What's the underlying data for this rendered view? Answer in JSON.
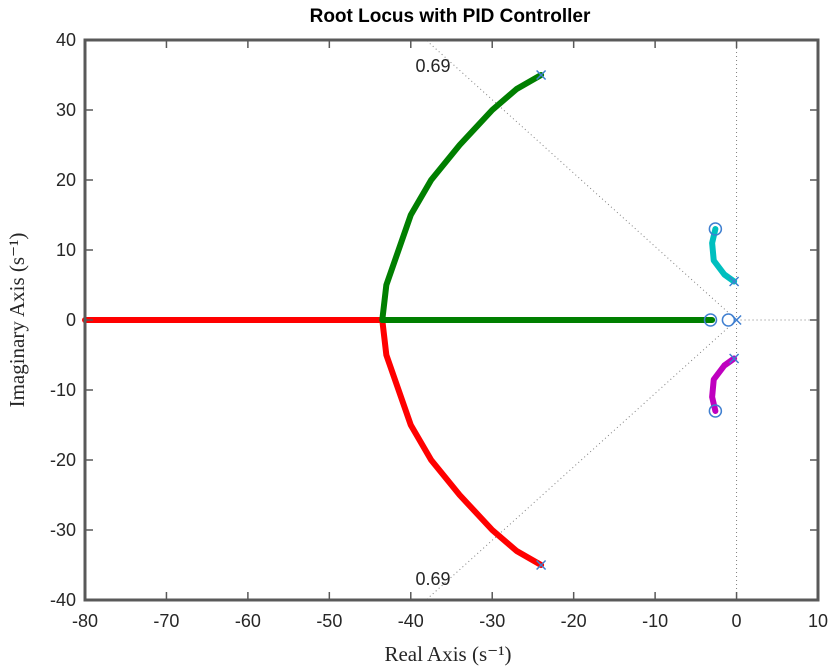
{
  "chart_data": {
    "type": "line",
    "title": "Root Locus with PID Controller",
    "xlabel": "Real Axis (s⁻¹)",
    "ylabel": "Imaginary Axis (s⁻¹)",
    "xlim": [
      -80,
      10
    ],
    "ylim": [
      -40,
      40
    ],
    "xticks": [
      -80,
      -70,
      -60,
      -50,
      -40,
      -30,
      -20,
      -10,
      0,
      10
    ],
    "yticks": [
      -40,
      -30,
      -20,
      -10,
      0,
      10,
      20,
      30,
      40
    ],
    "grid": false,
    "damping_labels": [
      "0.69",
      "0.69"
    ],
    "series": [
      {
        "color": "#ff0000",
        "x": [
          -80,
          -43.5
        ],
        "y": [
          0,
          0
        ]
      },
      {
        "color": "#ff0000",
        "x": [
          -43.5,
          -43.0,
          -41.5,
          -40.0,
          -37.5,
          -34.0,
          -30.0,
          -27.0,
          -24.0
        ],
        "y": [
          0,
          -5,
          -10,
          -15,
          -20,
          -25,
          -30,
          -33,
          -35
        ]
      },
      {
        "color": "#007f00",
        "x": [
          -43.5,
          -3.0
        ],
        "y": [
          0,
          0
        ]
      },
      {
        "color": "#007f00",
        "x": [
          -43.5,
          -43.0,
          -41.5,
          -40.0,
          -37.5,
          -34.0,
          -30.0,
          -27.0,
          -24.0
        ],
        "y": [
          0,
          5,
          10,
          15,
          20,
          25,
          30,
          33,
          35
        ]
      },
      {
        "color": "#00bfbf",
        "x": [
          -0.3,
          -1.5,
          -2.8,
          -3.0,
          -2.6
        ],
        "y": [
          5.5,
          6.5,
          8.5,
          11,
          13
        ]
      },
      {
        "color": "#bf00bf",
        "x": [
          -0.3,
          -1.5,
          -2.8,
          -3.0,
          -2.6
        ],
        "y": [
          -5.5,
          -6.5,
          -8.5,
          -11,
          -13
        ]
      }
    ],
    "poles": [
      {
        "x": -24,
        "y": 35
      },
      {
        "x": -24,
        "y": -35
      },
      {
        "x": -0.3,
        "y": 5.5
      },
      {
        "x": -0.3,
        "y": -5.5
      },
      {
        "x": 0,
        "y": 0
      }
    ],
    "zeros": [
      {
        "x": -2.6,
        "y": 13
      },
      {
        "x": -2.6,
        "y": -13
      },
      {
        "x": -3.2,
        "y": 0
      },
      {
        "x": -1.0,
        "y": 0
      }
    ],
    "damping_ratio": 0.69,
    "colors": {
      "marker": "#3f7fd0",
      "axes_frame": "#595959",
      "guide": "#808080"
    }
  }
}
